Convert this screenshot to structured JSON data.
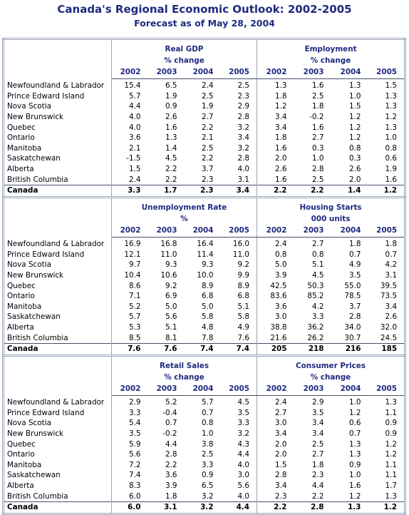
{
  "title": "Canada's Regional Economic Outlook:  2002-2005",
  "subtitle": "Forecast as of May 28, 2004",
  "blocks": [
    {
      "panels": [
        {
          "title": "Real GDP",
          "unit": "% change",
          "years": [
            "2002",
            "2003",
            "2004",
            "2005"
          ]
        },
        {
          "title": "Employment",
          "unit": "% change",
          "years": [
            "2002",
            "2003",
            "2004",
            "2005"
          ]
        }
      ],
      "rows": [
        [
          "Newfoundland & Labrador",
          "15.4",
          "6.5",
          "2.4",
          "2.5",
          "1.3",
          "1.6",
          "1.3",
          "1.5"
        ],
        [
          "Prince Edward Island",
          "5.7",
          "1.9",
          "2.5",
          "2.3",
          "1.8",
          "2.5",
          "1.0",
          "1.3"
        ],
        [
          "Nova Scotia",
          "4.4",
          "0.9",
          "1.9",
          "2.9",
          "1.2",
          "1.8",
          "1.5",
          "1.3"
        ],
        [
          "New Brunswick",
          "4.0",
          "2.6",
          "2.7",
          "2.8",
          "3.4",
          "-0.2",
          "1.2",
          "1.2"
        ],
        [
          "Quebec",
          "4.0",
          "1.6",
          "2.2",
          "3.2",
          "3.4",
          "1.6",
          "1.2",
          "1.3"
        ],
        [
          "Ontario",
          "3.6",
          "1.3",
          "2.1",
          "3.4",
          "1.8",
          "2.7",
          "1.2",
          "1.0"
        ],
        [
          "Manitoba",
          "2.1",
          "1.4",
          "2.5",
          "3.2",
          "1.6",
          "0.3",
          "0.8",
          "0.8"
        ],
        [
          "Saskatchewan",
          "-1.5",
          "4.5",
          "2.2",
          "2.8",
          "2.0",
          "1.0",
          "0.3",
          "0.6"
        ],
        [
          "Alberta",
          "1.5",
          "2.2",
          "3.7",
          "4.0",
          "2.6",
          "2.8",
          "2.6",
          "1.9"
        ],
        [
          "British Columbia",
          "2.4",
          "2.2",
          "2.3",
          "3.1",
          "1.6",
          "2.5",
          "2.0",
          "1.6"
        ]
      ],
      "total": [
        "Canada",
        "3.3",
        "1.7",
        "2.3",
        "3.4",
        "2.2",
        "2.2",
        "1.4",
        "1.2"
      ]
    },
    {
      "panels": [
        {
          "title": "Unemployment Rate",
          "unit": "%",
          "years": [
            "2002",
            "2003",
            "2004",
            "2005"
          ]
        },
        {
          "title": "Housing Starts",
          "unit": "000 units",
          "years": [
            "2002",
            "2003",
            "2004",
            "2005"
          ]
        }
      ],
      "rows": [
        [
          "Newfoundland & Labrador",
          "16.9",
          "16.8",
          "16.4",
          "16.0",
          "2.4",
          "2.7",
          "1.8",
          "1.8"
        ],
        [
          "Prince Edward Island",
          "12.1",
          "11.0",
          "11.4",
          "11.0",
          "0.8",
          "0.8",
          "0.7",
          "0.7"
        ],
        [
          "Nova Scotia",
          "9.7",
          "9.3",
          "9.3",
          "9.2",
          "5.0",
          "5.1",
          "4.9",
          "4.2"
        ],
        [
          "New Brunswick",
          "10.4",
          "10.6",
          "10.0",
          "9.9",
          "3.9",
          "4.5",
          "3.5",
          "3.1"
        ],
        [
          "Quebec",
          "8.6",
          "9.2",
          "8.9",
          "8.9",
          "42.5",
          "50.3",
          "55.0",
          "39.5"
        ],
        [
          "Ontario",
          "7.1",
          "6.9",
          "6.8",
          "6.8",
          "83.6",
          "85.2",
          "78.5",
          "73.5"
        ],
        [
          "Manitoba",
          "5.2",
          "5.0",
          "5.0",
          "5.1",
          "3.6",
          "4.2",
          "3.7",
          "3.4"
        ],
        [
          "Saskatchewan",
          "5.7",
          "5.6",
          "5.8",
          "5.8",
          "3.0",
          "3.3",
          "2.8",
          "2.6"
        ],
        [
          "Alberta",
          "5.3",
          "5.1",
          "4.8",
          "4.9",
          "38.8",
          "36.2",
          "34.0",
          "32.0"
        ],
        [
          "British Columbia",
          "8.5",
          "8.1",
          "7.8",
          "7.6",
          "21.6",
          "26.2",
          "30.7",
          "24.5"
        ]
      ],
      "total": [
        "Canada",
        "7.6",
        "7.6",
        "7.4",
        "7.4",
        "205",
        "218",
        "216",
        "185"
      ]
    },
    {
      "panels": [
        {
          "title": "Retail Sales",
          "unit": "% change",
          "years": [
            "2002",
            "2003",
            "2004",
            "2005"
          ]
        },
        {
          "title": "Consumer Prices",
          "unit": "% change",
          "years": [
            "2002",
            "2003",
            "2004",
            "2005"
          ]
        }
      ],
      "rows": [
        [
          "Newfoundland & Labrador",
          "2.9",
          "5.2",
          "5.7",
          "4.5",
          "2.4",
          "2.9",
          "1.0",
          "1.3"
        ],
        [
          "Prince Edward Island",
          "3.3",
          "-0.4",
          "0.7",
          "3.5",
          "2.7",
          "3.5",
          "1.2",
          "1.1"
        ],
        [
          "Nova Scotia",
          "5.4",
          "0.7",
          "0.8",
          "3.3",
          "3.0",
          "3.4",
          "0.6",
          "0.9"
        ],
        [
          "New Brunswick",
          "3.5",
          "-0.2",
          "1.0",
          "3.2",
          "3.4",
          "3.4",
          "0.7",
          "0.9"
        ],
        [
          "Quebec",
          "5.9",
          "4.4",
          "3.8",
          "4.3",
          "2.0",
          "2.5",
          "1.3",
          "1.2"
        ],
        [
          "Ontario",
          "5.6",
          "2.8",
          "2.5",
          "4.4",
          "2.0",
          "2.7",
          "1.3",
          "1.2"
        ],
        [
          "Manitoba",
          "7.2",
          "2.2",
          "3.3",
          "4.0",
          "1.5",
          "1.8",
          "0.9",
          "1.1"
        ],
        [
          "Saskatchewan",
          "7.4",
          "3.6",
          "0.9",
          "3.0",
          "2.8",
          "2.3",
          "1.0",
          "1.1"
        ],
        [
          "Alberta",
          "8.3",
          "3.9",
          "6.5",
          "5.6",
          "3.4",
          "4.4",
          "1.6",
          "1.7"
        ],
        [
          "British Columbia",
          "6.0",
          "1.8",
          "3.2",
          "4.0",
          "2.3",
          "2.2",
          "1.2",
          "1.3"
        ]
      ],
      "total": [
        "Canada",
        "6.0",
        "3.1",
        "3.2",
        "4.4",
        "2.2",
        "2.8",
        "1.3",
        "1.2"
      ]
    }
  ]
}
